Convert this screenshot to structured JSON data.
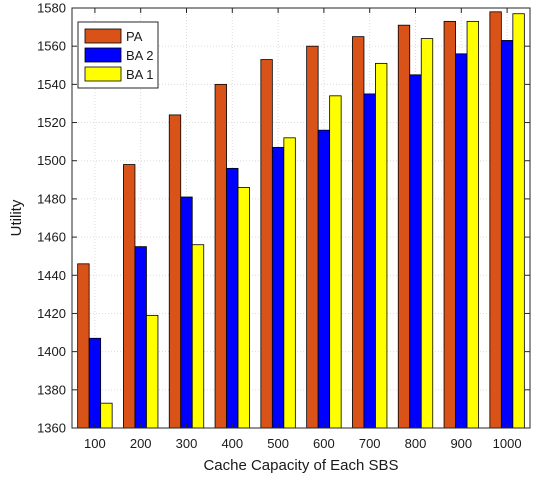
{
  "chart_data": {
    "type": "bar",
    "xlabel": "Cache Capacity of Each SBS",
    "ylabel": "Utility",
    "categories": [
      "100",
      "200",
      "300",
      "400",
      "500",
      "600",
      "700",
      "800",
      "900",
      "1000"
    ],
    "ylim": [
      1360,
      1580
    ],
    "yticks": [
      "1360",
      "1380",
      "1400",
      "1420",
      "1440",
      "1460",
      "1480",
      "1500",
      "1520",
      "1540",
      "1560",
      "1580"
    ],
    "grid": true,
    "legend_position": "top-left",
    "series": [
      {
        "name": "PA",
        "color": "#d95319",
        "values": [
          1446,
          1498,
          1524,
          1540,
          1553,
          1560,
          1565,
          1571,
          1573,
          1578
        ]
      },
      {
        "name": "BA 2",
        "color": "#0000ff",
        "values": [
          1407,
          1455,
          1481,
          1496,
          1507,
          1516,
          1535,
          1545,
          1556,
          1563
        ]
      },
      {
        "name": "BA 1",
        "color": "#ffff00",
        "values": [
          1373,
          1419,
          1456,
          1486,
          1512,
          1534,
          1551,
          1564,
          1573,
          1577
        ]
      }
    ]
  }
}
